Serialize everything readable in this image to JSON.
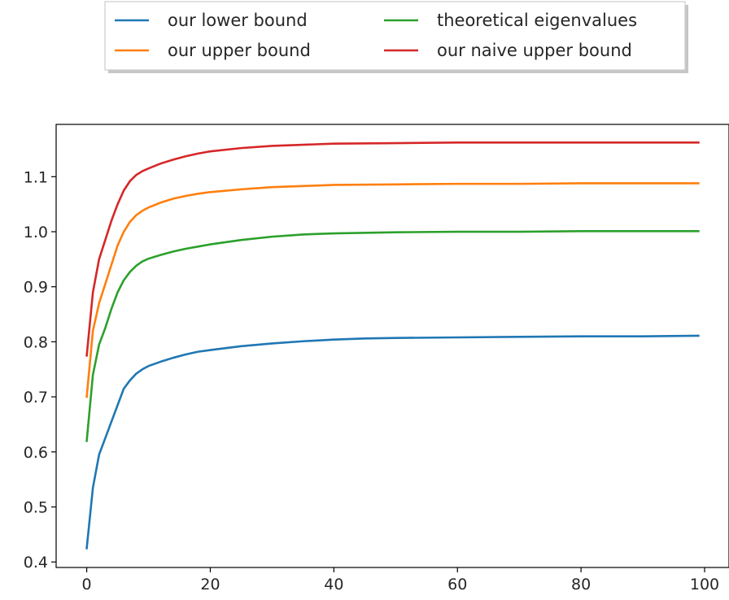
{
  "chart_data": {
    "type": "line",
    "title": "",
    "xlabel": "",
    "ylabel": "",
    "xlim": [
      -4.95,
      103.95
    ],
    "ylim": [
      0.39,
      1.195
    ],
    "xticks": [
      0,
      20,
      40,
      60,
      80,
      100
    ],
    "yticks": [
      0.4,
      0.5,
      0.6,
      0.7,
      0.8,
      0.9,
      1.0,
      1.1
    ],
    "xtick_labels": [
      "0",
      "20",
      "40",
      "60",
      "80",
      "100"
    ],
    "ytick_labels": [
      "0.4",
      "0.5",
      "0.6",
      "0.7",
      "0.8",
      "0.9",
      "1.0",
      "1.1"
    ],
    "grid": false,
    "legend_placement": "above plot, two columns",
    "legend_columns": 2,
    "series": [
      {
        "name": "our lower bound",
        "color": "#1f77b4",
        "points": [
          [
            0,
            0.425
          ],
          [
            1,
            0.535
          ],
          [
            2,
            0.595
          ],
          [
            3,
            0.625
          ],
          [
            4,
            0.655
          ],
          [
            5,
            0.685
          ],
          [
            6,
            0.715
          ],
          [
            7,
            0.73
          ],
          [
            8,
            0.742
          ],
          [
            9,
            0.75
          ],
          [
            10,
            0.756
          ],
          [
            12,
            0.764
          ],
          [
            14,
            0.771
          ],
          [
            16,
            0.777
          ],
          [
            18,
            0.782
          ],
          [
            20,
            0.785
          ],
          [
            25,
            0.792
          ],
          [
            30,
            0.797
          ],
          [
            35,
            0.801
          ],
          [
            40,
            0.804
          ],
          [
            45,
            0.806
          ],
          [
            50,
            0.807
          ],
          [
            60,
            0.808
          ],
          [
            70,
            0.809
          ],
          [
            80,
            0.81
          ],
          [
            90,
            0.81
          ],
          [
            99,
            0.811
          ]
        ]
      },
      {
        "name": "our upper bound",
        "color": "#ff7f0e",
        "points": [
          [
            0,
            0.7
          ],
          [
            1,
            0.82
          ],
          [
            2,
            0.87
          ],
          [
            3,
            0.905
          ],
          [
            4,
            0.94
          ],
          [
            5,
            0.975
          ],
          [
            6,
            1.0
          ],
          [
            7,
            1.018
          ],
          [
            8,
            1.03
          ],
          [
            9,
            1.038
          ],
          [
            10,
            1.044
          ],
          [
            12,
            1.053
          ],
          [
            14,
            1.06
          ],
          [
            16,
            1.065
          ],
          [
            18,
            1.069
          ],
          [
            20,
            1.072
          ],
          [
            25,
            1.077
          ],
          [
            30,
            1.081
          ],
          [
            35,
            1.083
          ],
          [
            40,
            1.085
          ],
          [
            50,
            1.086
          ],
          [
            60,
            1.087
          ],
          [
            70,
            1.087
          ],
          [
            80,
            1.088
          ],
          [
            90,
            1.088
          ],
          [
            99,
            1.088
          ]
        ]
      },
      {
        "name": "theoretical eigenvalues",
        "color": "#2ca02c",
        "points": [
          [
            0,
            0.62
          ],
          [
            1,
            0.74
          ],
          [
            2,
            0.795
          ],
          [
            3,
            0.825
          ],
          [
            4,
            0.86
          ],
          [
            5,
            0.89
          ],
          [
            6,
            0.912
          ],
          [
            7,
            0.927
          ],
          [
            8,
            0.938
          ],
          [
            9,
            0.946
          ],
          [
            10,
            0.951
          ],
          [
            12,
            0.958
          ],
          [
            14,
            0.964
          ],
          [
            16,
            0.969
          ],
          [
            18,
            0.973
          ],
          [
            20,
            0.977
          ],
          [
            25,
            0.985
          ],
          [
            30,
            0.991
          ],
          [
            35,
            0.995
          ],
          [
            40,
            0.997
          ],
          [
            50,
            0.999
          ],
          [
            60,
            1.0
          ],
          [
            70,
            1.0
          ],
          [
            80,
            1.001
          ],
          [
            90,
            1.001
          ],
          [
            99,
            1.001
          ]
        ]
      },
      {
        "name": "our naive upper bound",
        "color": "#d62728",
        "points": [
          [
            0,
            0.775
          ],
          [
            1,
            0.89
          ],
          [
            2,
            0.95
          ],
          [
            3,
            0.985
          ],
          [
            4,
            1.02
          ],
          [
            5,
            1.05
          ],
          [
            6,
            1.075
          ],
          [
            7,
            1.092
          ],
          [
            8,
            1.103
          ],
          [
            9,
            1.11
          ],
          [
            10,
            1.115
          ],
          [
            12,
            1.124
          ],
          [
            14,
            1.131
          ],
          [
            16,
            1.137
          ],
          [
            18,
            1.142
          ],
          [
            20,
            1.146
          ],
          [
            25,
            1.152
          ],
          [
            30,
            1.156
          ],
          [
            35,
            1.158
          ],
          [
            40,
            1.16
          ],
          [
            50,
            1.161
          ],
          [
            60,
            1.162
          ],
          [
            70,
            1.162
          ],
          [
            80,
            1.162
          ],
          [
            90,
            1.162
          ],
          [
            99,
            1.162
          ]
        ]
      }
    ]
  }
}
